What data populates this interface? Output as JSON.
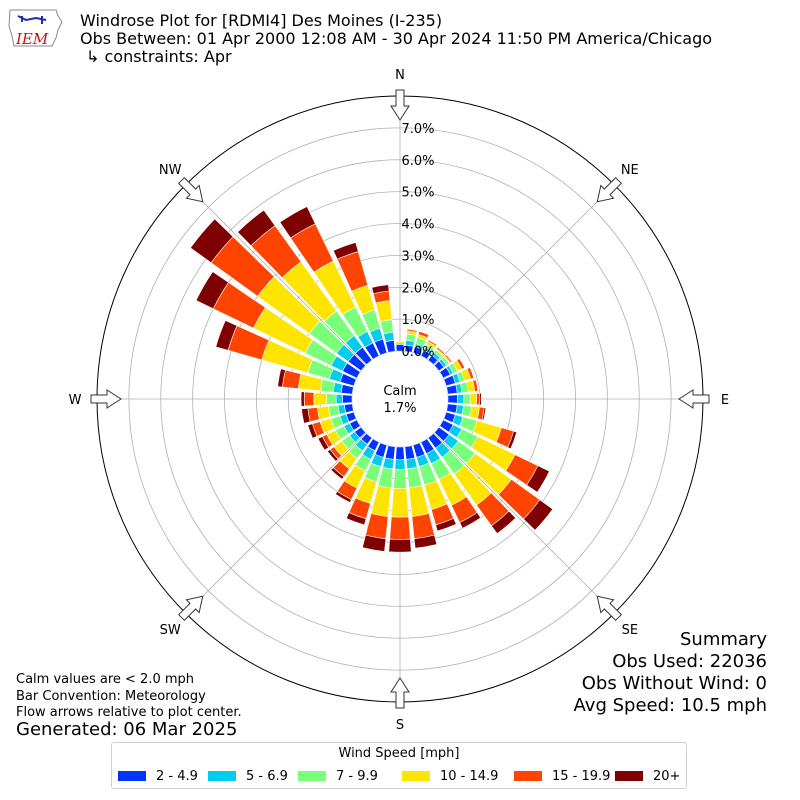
{
  "logo": {
    "text": "IEM",
    "icon": "iowa-state-outline-icon"
  },
  "header": {
    "title": "Windrose Plot for [RDMI4] Des Moines (I-235)",
    "subtitle": "Obs Between: 01 Apr 2000 12:08 AM - 30 Apr 2024 11:50 PM America/Chicago",
    "constraints": "↳ constraints: Apr"
  },
  "notes": {
    "calm_def": "Calm values are < 2.0 mph",
    "bar_convention": "Bar Convention: Meteorology",
    "flow_arrows": "Flow arrows relative to plot center.",
    "generated": "Generated: 06 Mar 2025"
  },
  "summary": {
    "title": "Summary",
    "obs_used": "Obs Used: 22036",
    "obs_without_wind": "Obs Without Wind: 0",
    "avg_speed": "Avg Speed: 10.5 mph"
  },
  "chart_data": {
    "type": "windrose",
    "calm_label": "Calm",
    "calm_value": "1.7%",
    "calm_percent": 1.7,
    "radial_ticks": [
      "0.0%",
      "1.0%",
      "2.0%",
      "3.0%",
      "4.0%",
      "5.0%",
      "6.0%",
      "7.0%"
    ],
    "rmax_percent": 8.0,
    "compass_labels": [
      "N",
      "NE",
      "E",
      "SE",
      "S",
      "SW",
      "W",
      "NW"
    ],
    "legend_title": "Wind Speed [mph]",
    "bins": [
      {
        "label": "2 - 4.9",
        "color": "#0033ff"
      },
      {
        "label": "5 - 6.9",
        "color": "#00ccee"
      },
      {
        "label": "7 - 9.9",
        "color": "#7aff7a"
      },
      {
        "label": "10 - 14.9",
        "color": "#ffe400"
      },
      {
        "label": "15 - 19.9",
        "color": "#ff4400"
      },
      {
        "label": "20+",
        "color": "#7f0000"
      }
    ],
    "directions_deg": [
      0,
      10,
      20,
      30,
      40,
      50,
      60,
      70,
      80,
      90,
      100,
      110,
      120,
      130,
      140,
      150,
      160,
      170,
      180,
      190,
      200,
      210,
      220,
      230,
      240,
      250,
      260,
      270,
      280,
      290,
      300,
      310,
      320,
      330,
      340,
      350
    ],
    "cumulative_percent": [
      [
        0.2,
        0.25,
        0.25,
        0.3,
        0.3,
        0.3
      ],
      [
        0.2,
        0.35,
        0.55,
        0.65,
        0.7,
        0.7
      ],
      [
        0.2,
        0.3,
        0.5,
        0.6,
        0.7,
        0.7
      ],
      [
        0.2,
        0.3,
        0.4,
        0.5,
        0.55,
        0.55
      ],
      [
        0.2,
        0.3,
        0.4,
        0.45,
        0.5,
        0.5
      ],
      [
        0.2,
        0.3,
        0.4,
        0.45,
        0.5,
        0.5
      ],
      [
        0.25,
        0.35,
        0.5,
        0.65,
        0.75,
        0.75
      ],
      [
        0.3,
        0.45,
        0.6,
        0.8,
        0.9,
        0.9
      ],
      [
        0.3,
        0.45,
        0.65,
        0.85,
        0.95,
        0.95
      ],
      [
        0.3,
        0.5,
        0.7,
        0.9,
        1.0,
        1.05
      ],
      [
        0.3,
        0.5,
        0.75,
        1.0,
        1.15,
        1.2
      ],
      [
        0.3,
        0.55,
        1.0,
        1.8,
        2.2,
        2.3
      ],
      [
        0.35,
        0.65,
        1.2,
        2.5,
        3.3,
        3.7
      ],
      [
        0.4,
        0.75,
        1.4,
        2.8,
        3.9,
        4.4
      ],
      [
        0.4,
        0.75,
        1.4,
        2.6,
        3.4,
        3.7
      ],
      [
        0.4,
        0.75,
        1.3,
        2.2,
        2.8,
        3.0
      ],
      [
        0.4,
        0.7,
        1.3,
        2.1,
        2.6,
        2.8
      ],
      [
        0.4,
        0.7,
        1.3,
        2.2,
        2.9,
        3.2
      ],
      [
        0.4,
        0.7,
        1.3,
        2.2,
        2.9,
        3.3
      ],
      [
        0.4,
        0.7,
        1.3,
        2.2,
        2.9,
        3.3
      ],
      [
        0.4,
        0.7,
        1.2,
        1.9,
        2.4,
        2.6
      ],
      [
        0.3,
        0.6,
        1.0,
        1.6,
        2.0,
        2.1
      ],
      [
        0.25,
        0.5,
        0.8,
        1.2,
        1.5,
        1.6
      ],
      [
        0.25,
        0.45,
        0.75,
        1.05,
        1.2,
        1.3
      ],
      [
        0.25,
        0.45,
        0.75,
        1.05,
        1.2,
        1.35
      ],
      [
        0.25,
        0.45,
        0.75,
        1.1,
        1.35,
        1.5
      ],
      [
        0.25,
        0.45,
        0.75,
        1.1,
        1.4,
        1.6
      ],
      [
        0.3,
        0.5,
        0.8,
        1.2,
        1.5,
        1.6
      ],
      [
        0.35,
        0.6,
        1.0,
        1.7,
        2.2,
        2.35
      ],
      [
        0.45,
        0.8,
        1.5,
        3.0,
        4.1,
        4.5
      ],
      [
        0.5,
        0.9,
        1.8,
        3.6,
        5.0,
        5.6
      ],
      [
        0.5,
        0.95,
        2.0,
        4.0,
        5.8,
        6.6
      ],
      [
        0.5,
        0.95,
        1.9,
        3.8,
        5.2,
        5.8
      ],
      [
        0.45,
        0.85,
        1.7,
        3.3,
        4.6,
        5.2
      ],
      [
        0.45,
        0.8,
        1.4,
        2.2,
        3.3,
        3.6
      ],
      [
        0.35,
        0.6,
        1.0,
        1.6,
        1.9,
        2.1
      ]
    ]
  }
}
